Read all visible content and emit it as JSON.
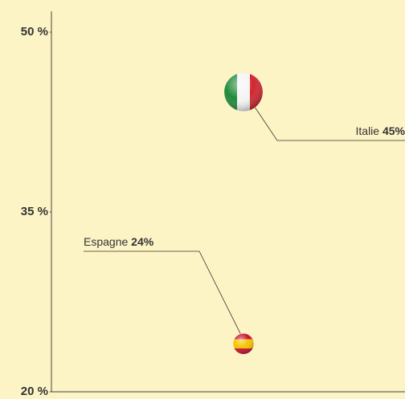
{
  "chart_data": {
    "type": "scatter",
    "categories": [
      "Italie",
      "Espagne"
    ],
    "values": [
      45,
      24
    ],
    "value_labels": [
      "45%",
      "24%"
    ],
    "ylim": [
      20,
      50
    ],
    "yticks": [
      {
        "value": 20,
        "label": "20 %"
      },
      {
        "value": 35,
        "label": "35 %"
      },
      {
        "value": 50,
        "label": "50 %"
      }
    ]
  }
}
